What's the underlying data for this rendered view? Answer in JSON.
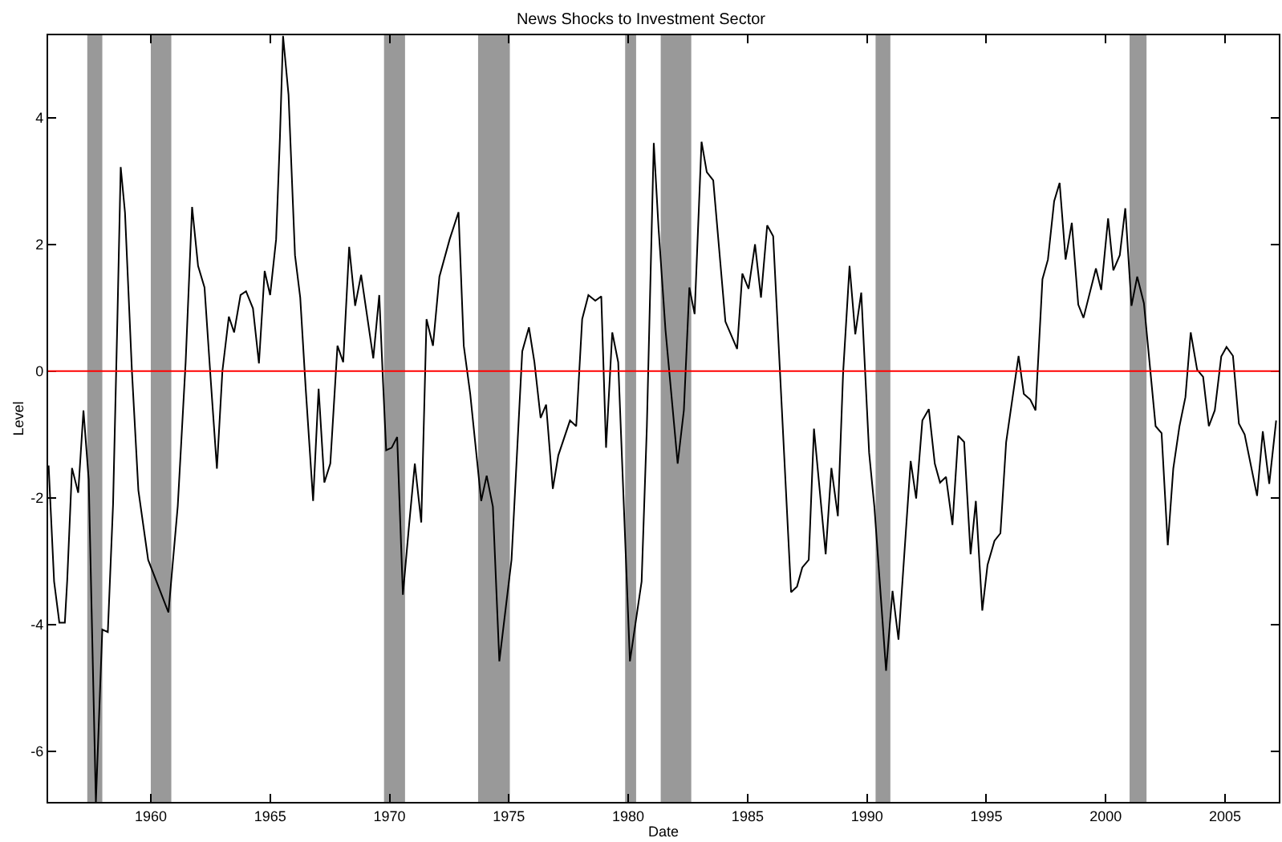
{
  "chart_data": {
    "type": "line",
    "title": "News Shocks to Investment Sector",
    "xlabel": "Date",
    "ylabel": "Level",
    "x": [
      1955.72,
      1955.95,
      1956.17,
      1956.4,
      1956.5,
      1956.7,
      1956.96,
      1957.18,
      1957.4,
      1957.7,
      1957.97,
      1958.2,
      1958.42,
      1958.6,
      1958.74,
      1958.92,
      1959.21,
      1959.48,
      1959.89,
      1960.74,
      1961.13,
      1961.46,
      1961.73,
      1961.98,
      1962.25,
      1962.52,
      1962.77,
      1963.0,
      1963.27,
      1963.49,
      1963.76,
      1963.99,
      1964.28,
      1964.53,
      1964.77,
      1965.0,
      1965.25,
      1965.41,
      1965.54,
      1965.77,
      1966.04,
      1966.26,
      1966.49,
      1966.8,
      1967.03,
      1967.27,
      1967.52,
      1967.82,
      1968.06,
      1968.31,
      1968.56,
      1968.81,
      1969.32,
      1969.57,
      1969.73,
      1969.86,
      1970.09,
      1970.32,
      1970.56,
      1970.81,
      1971.06,
      1971.33,
      1971.55,
      1971.82,
      1972.09,
      1972.52,
      1972.89,
      1973.11,
      1973.38,
      1973.84,
      1974.07,
      1974.33,
      1974.6,
      1975.11,
      1975.56,
      1975.84,
      1976.07,
      1976.33,
      1976.56,
      1976.84,
      1977.07,
      1977.56,
      1977.82,
      1978.07,
      1978.33,
      1978.62,
      1978.87,
      1979.07,
      1979.33,
      1979.58,
      1980.07,
      1980.56,
      1980.78,
      1981.07,
      1981.27,
      1981.56,
      1982.07,
      1982.33,
      1982.56,
      1982.78,
      1983.07,
      1983.29,
      1983.56,
      1984.07,
      1984.56,
      1984.78,
      1985.04,
      1985.31,
      1985.56,
      1985.82,
      1986.07,
      1986.82,
      1987.07,
      1987.29,
      1987.56,
      1987.78,
      1988.27,
      1988.51,
      1988.78,
      1989.0,
      1989.27,
      1989.51,
      1989.76,
      1990.09,
      1990.31,
      1990.8,
      1991.07,
      1991.32,
      1991.83,
      1992.06,
      1992.32,
      1992.59,
      1992.84,
      1993.06,
      1993.31,
      1993.58,
      1993.82,
      1994.07,
      1994.34,
      1994.56,
      1994.83,
      1995.05,
      1995.34,
      1995.59,
      1995.83,
      1996.35,
      1996.57,
      1996.84,
      1997.06,
      1997.35,
      1997.58,
      1997.84,
      1998.07,
      1998.32,
      1998.58,
      1998.85,
      1999.07,
      1999.59,
      1999.81,
      2000.1,
      2000.32,
      2000.59,
      2000.82,
      2001.08,
      2001.32,
      2001.6,
      2002.09,
      2002.34,
      2002.6,
      2002.83,
      2003.09,
      2003.34,
      2003.56,
      2003.83,
      2004.08,
      2004.32,
      2004.57,
      2004.84,
      2005.06,
      2005.33,
      2005.58,
      2005.82,
      2006.34,
      2006.58,
      2006.85,
      2007.14
    ],
    "series": [
      {
        "color": "#000000",
        "values": [
          -1.49,
          -3.32,
          -3.97,
          -3.97,
          -3.3,
          -1.53,
          -1.92,
          -0.62,
          -1.71,
          -6.8,
          -4.08,
          -4.12,
          -2.1,
          0.8,
          3.22,
          2.5,
          0,
          -1.88,
          -2.98,
          -3.81,
          -2.13,
          0.14,
          2.59,
          1.66,
          1.32,
          -0.19,
          -1.54,
          0,
          0.86,
          0.61,
          1.2,
          1.26,
          0.99,
          0.12,
          1.58,
          1.2,
          2.08,
          3.69,
          5.29,
          4.36,
          1.83,
          1.16,
          -0.28,
          -2.05,
          -0.28,
          -1.76,
          -1.46,
          0.4,
          0.14,
          1.96,
          1.03,
          1.52,
          0.2,
          1.2,
          -0.19,
          -1.25,
          -1.21,
          -1.04,
          -3.53,
          -2.47,
          -1.46,
          -2.39,
          0.82,
          0.4,
          1.49,
          2.08,
          2.51,
          0.4,
          -0.36,
          -2.05,
          -1.65,
          -2.14,
          -4.58,
          -2.98,
          0.31,
          0.69,
          0.14,
          -0.74,
          -0.53,
          -1.86,
          -1.33,
          -0.78,
          -0.87,
          0.82,
          1.2,
          1.11,
          1.18,
          -1.21,
          0.61,
          0.14,
          -4.58,
          -3.32,
          -0.87,
          3.6,
          2.25,
          0.65,
          -1.46,
          -0.62,
          1.32,
          0.9,
          3.62,
          3.14,
          3.01,
          0.78,
          0.35,
          1.54,
          1.3,
          2.0,
          1.16,
          2.3,
          2.13,
          -3.49,
          -3.4,
          -3.1,
          -2.98,
          -0.91,
          -2.89,
          -1.53,
          -2.29,
          -0.03,
          1.66,
          0.58,
          1.24,
          -1.29,
          -2.14,
          -4.73,
          -3.47,
          -4.24,
          -1.42,
          -2.01,
          -0.78,
          -0.6,
          -1.46,
          -1.76,
          -1.67,
          -2.43,
          -1.02,
          -1.12,
          -2.89,
          -2.05,
          -3.78,
          -3.06,
          -2.68,
          -2.56,
          -1.12,
          0.24,
          -0.36,
          -0.45,
          -0.62,
          1.45,
          1.76,
          2.68,
          2.97,
          1.76,
          2.34,
          1.05,
          0.84,
          1.62,
          1.28,
          2.41,
          1.59,
          1.83,
          2.57,
          1.03,
          1.49,
          1.07,
          -0.87,
          -0.98,
          -2.75,
          -1.54,
          -0.87,
          -0.41,
          0.61,
          0.02,
          -0.09,
          -0.87,
          -0.62,
          0.23,
          0.38,
          0.24,
          -0.83,
          -1.0,
          -1.97,
          -0.95,
          -1.78,
          -0.78
        ]
      }
    ],
    "xlim": [
      1955.7,
      2007.25
    ],
    "ylim": [
      -6.8,
      5.3
    ],
    "xticks": [
      1960,
      1965,
      1970,
      1975,
      1980,
      1985,
      1990,
      1995,
      2000,
      2005
    ],
    "yticks": [
      -6,
      -4,
      -2,
      0,
      2,
      4
    ],
    "ref_lines": [
      {
        "axis": "y",
        "value": 0,
        "color": "#ff0000"
      }
    ],
    "bands": [
      {
        "axis": "x",
        "from": 1957.34,
        "to": 1957.97,
        "color": "#999999"
      },
      {
        "axis": "x",
        "from": 1960.0,
        "to": 1960.86,
        "color": "#999999"
      },
      {
        "axis": "x",
        "from": 1969.77,
        "to": 1970.65,
        "color": "#999999"
      },
      {
        "axis": "x",
        "from": 1973.71,
        "to": 1975.04,
        "color": "#999999"
      },
      {
        "axis": "x",
        "from": 1979.87,
        "to": 1980.33,
        "color": "#999999"
      },
      {
        "axis": "x",
        "from": 1981.36,
        "to": 1982.64,
        "color": "#999999"
      },
      {
        "axis": "x",
        "from": 1990.36,
        "to": 1990.98,
        "color": "#999999"
      },
      {
        "axis": "x",
        "from": 2001.0,
        "to": 2001.71,
        "color": "#999999"
      }
    ],
    "grid": false,
    "legend": false,
    "line_style": "solid",
    "marker": "none"
  }
}
